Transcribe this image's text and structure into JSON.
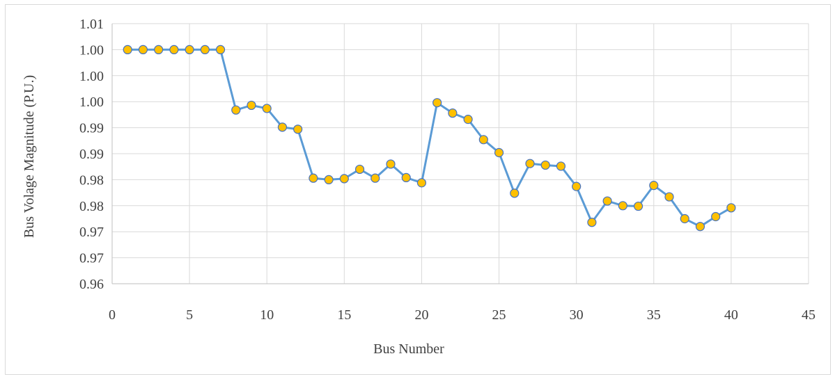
{
  "chart_data": {
    "type": "line",
    "title": "",
    "xlabel": "Bus Number",
    "ylabel": "Bus Volage Magnitude (P.U.)",
    "xlim": [
      0,
      45
    ],
    "ylim": [
      0.96,
      1.01
    ],
    "x_ticks": [
      0,
      5,
      10,
      15,
      20,
      25,
      30,
      35,
      40,
      45
    ],
    "x_tick_labels": [
      "0",
      "5",
      "10",
      "15",
      "20",
      "25",
      "30",
      "35",
      "40",
      "45"
    ],
    "y_ticks": [
      0.96,
      0.965,
      0.97,
      0.975,
      0.98,
      0.985,
      0.99,
      0.995,
      1.0,
      1.005,
      1.01
    ],
    "y_tick_labels": [
      "0.96",
      "0.97",
      "0.97",
      "0.98",
      "0.98",
      "0.99",
      "0.99",
      "1.00",
      "1.00",
      "1.00",
      "1.01"
    ],
    "grid": true,
    "legend": "none",
    "line_color": "#5b9bd5",
    "marker_color": "#ffc000",
    "marker_edge_color": "#4472c4",
    "series": [
      {
        "x": [
          1,
          2,
          3,
          4,
          5,
          6,
          7,
          8,
          9,
          10,
          11,
          12,
          13,
          14,
          15,
          16,
          17,
          18,
          19,
          20,
          21,
          22,
          23,
          24,
          25,
          26,
          27,
          28,
          29,
          30,
          31,
          32,
          33,
          34,
          35,
          36,
          37,
          38,
          39,
          40
        ],
        "values": [
          1.005,
          1.005,
          1.005,
          1.005,
          1.005,
          1.005,
          1.005,
          0.9934,
          0.9943,
          0.9937,
          0.9901,
          0.9897,
          0.9803,
          0.98,
          0.9802,
          0.982,
          0.9803,
          0.983,
          0.9804,
          0.9794,
          0.9948,
          0.9928,
          0.9916,
          0.9877,
          0.9852,
          0.9774,
          0.9831,
          0.9828,
          0.9826,
          0.9787,
          0.9718,
          0.9759,
          0.975,
          0.9749,
          0.9789,
          0.9767,
          0.9725,
          0.971,
          0.9729,
          0.9746
        ]
      }
    ]
  }
}
